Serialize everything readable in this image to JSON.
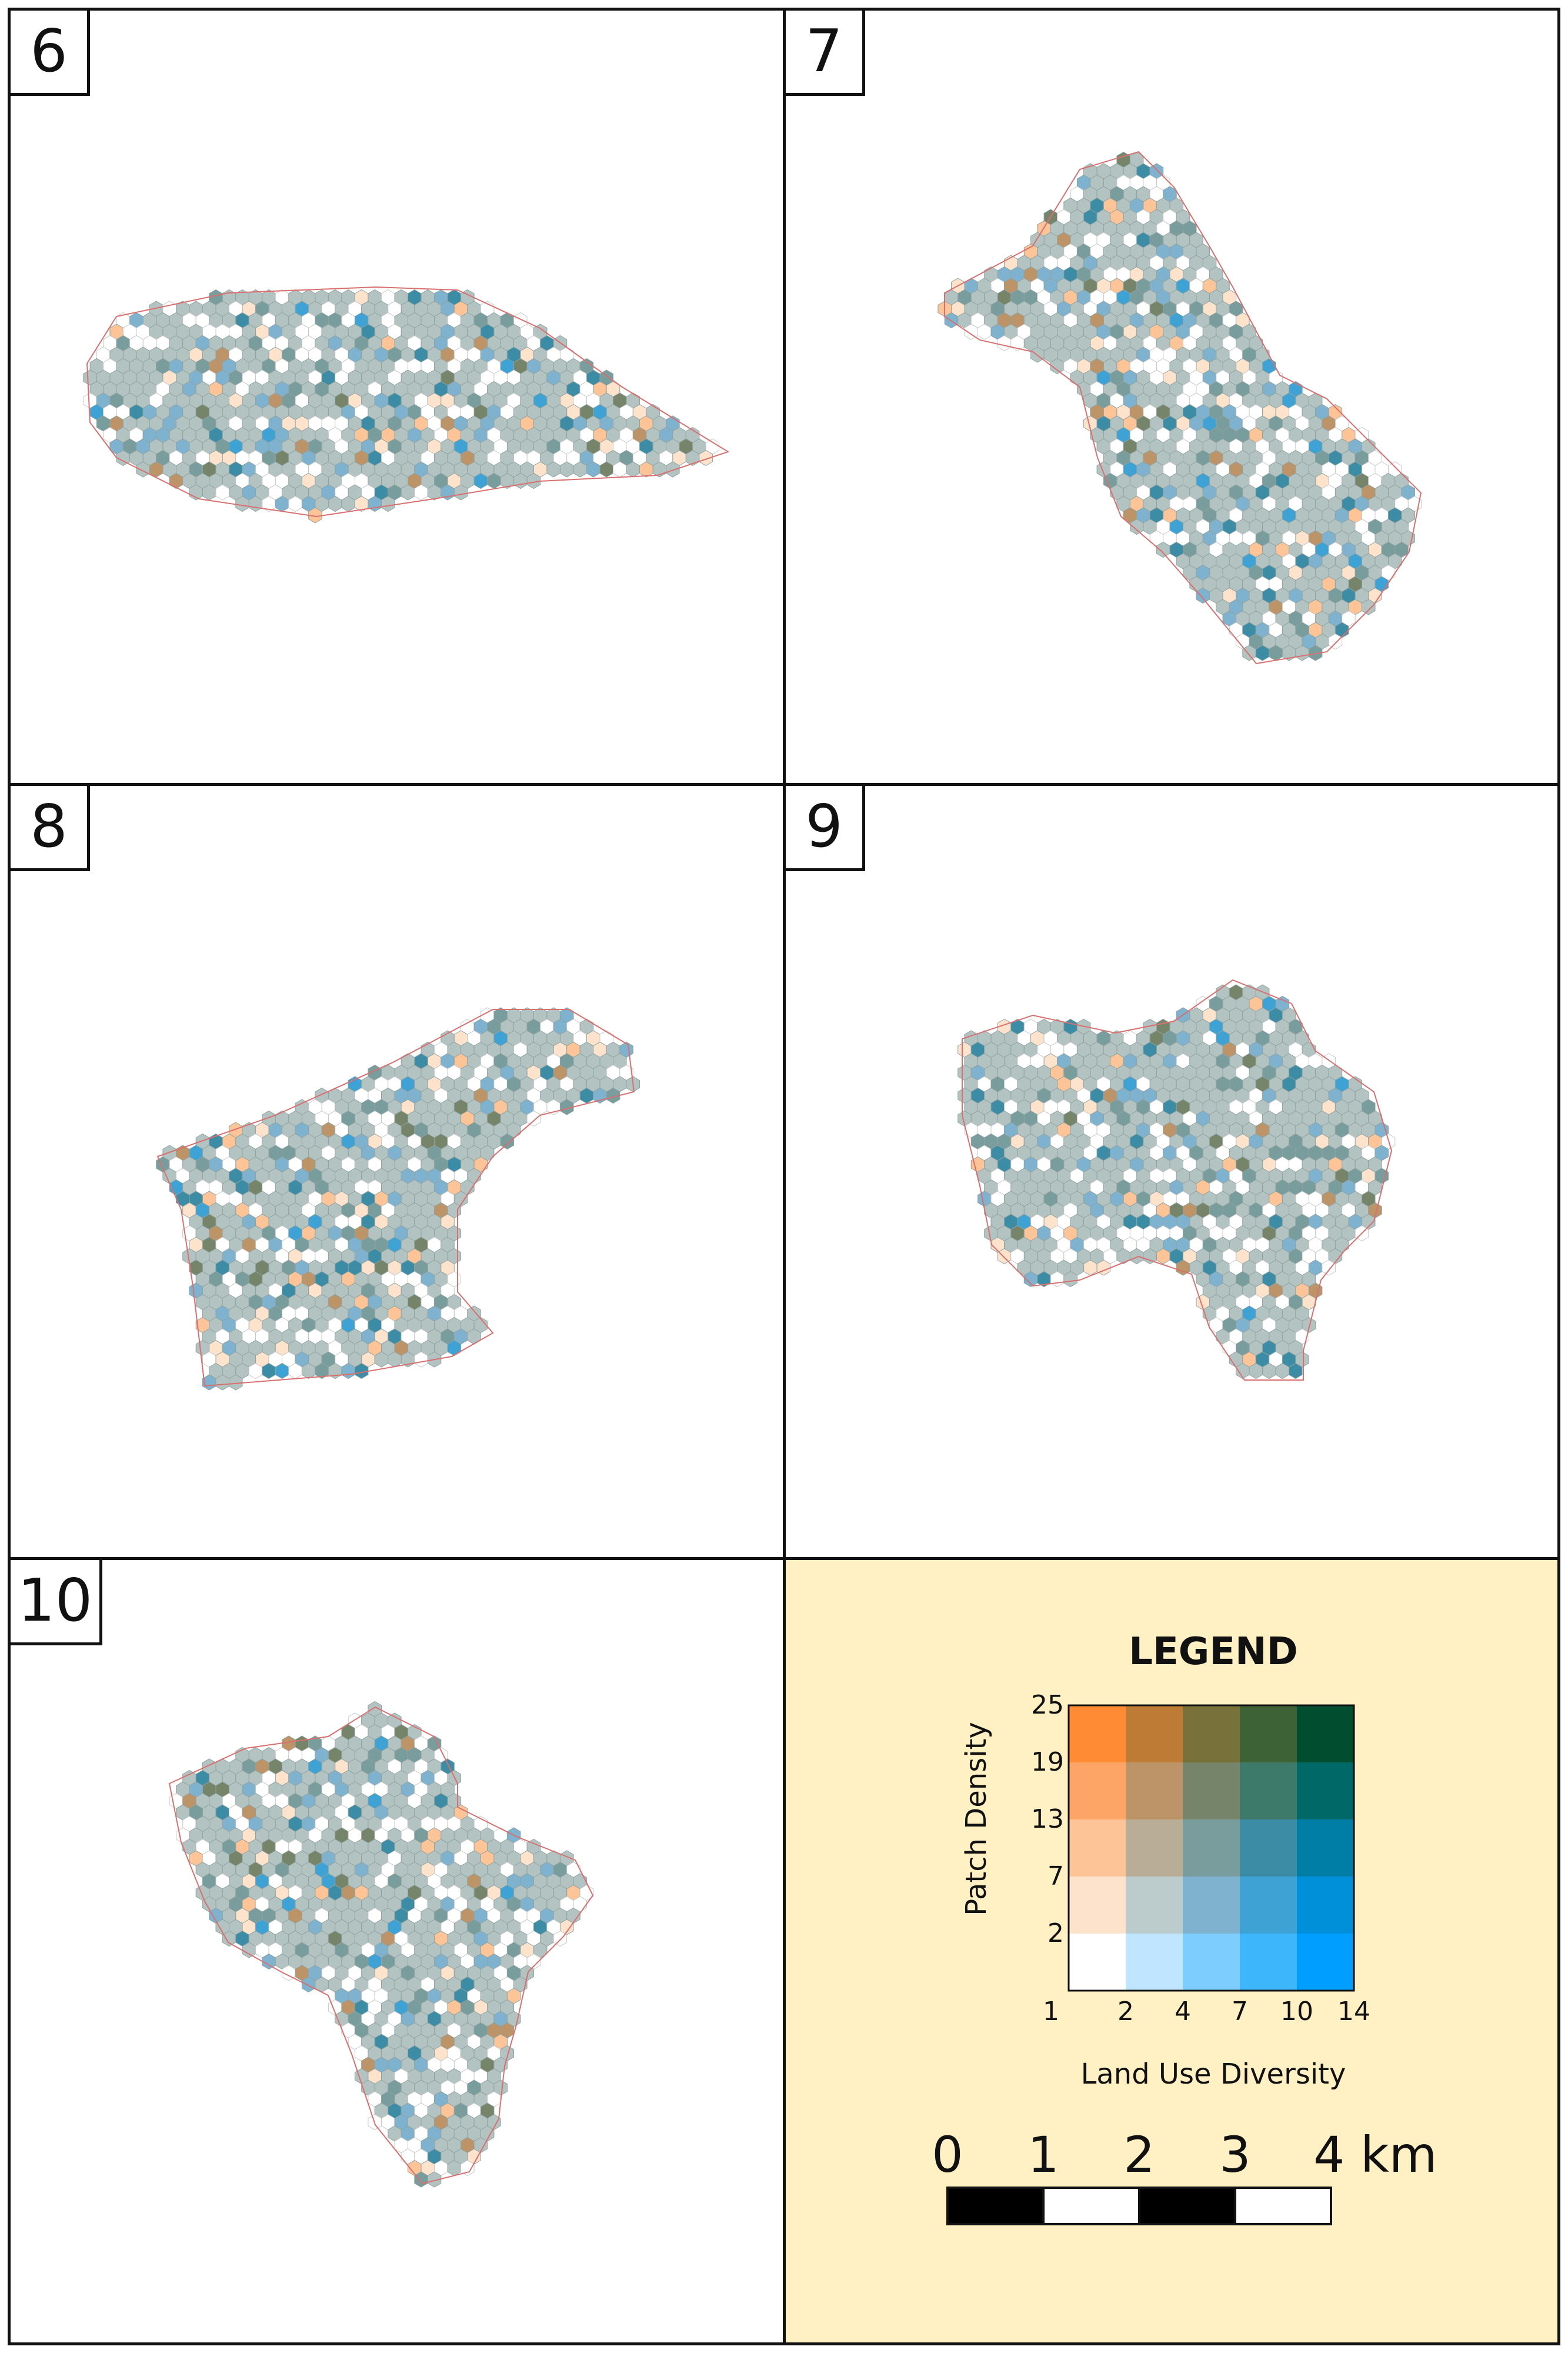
{
  "panels": [
    {
      "id": "6",
      "label": "6"
    },
    {
      "id": "7",
      "label": "7"
    },
    {
      "id": "8",
      "label": "8"
    },
    {
      "id": "9",
      "label": "9"
    },
    {
      "id": "10",
      "label": "10"
    }
  ],
  "legend": {
    "title": "LEGEND",
    "y_axis_label": "Patch Density",
    "x_axis_label": "Land Use Diversity",
    "y_ticks": [
      "25",
      "19",
      "13",
      "7",
      "2"
    ],
    "x_ticks": [
      "1",
      "2",
      "4",
      "7",
      "10",
      "14"
    ],
    "grid_colors_top_to_bottom": [
      [
        "#ff8c35",
        "#bd7b36",
        "#787139",
        "#3d6235",
        "#004d30"
      ],
      [
        "#fca566",
        "#bc9467",
        "#76856a",
        "#3e7a6a",
        "#006967"
      ],
      [
        "#fdc497",
        "#b9ad98",
        "#799d9c",
        "#3c8ca5",
        "#007ea5"
      ],
      [
        "#fde2cc",
        "#bccbcb",
        "#7eb2cf",
        "#3ea2d5",
        "#0090d9"
      ],
      [
        "#ffffff",
        "#bfe6fe",
        "#7dcefe",
        "#3db6fc",
        "#009efe"
      ]
    ]
  },
  "scale_bar": {
    "labels": [
      "0",
      "1",
      "2",
      "3",
      "4 km"
    ],
    "segment_colors": [
      "#000000",
      "#ffffff",
      "#000000",
      "#ffffff"
    ]
  },
  "colors": {
    "frame": "#111111",
    "legend_background": "#fff1c4",
    "dominant_hex_fill": "#b3c3c1",
    "district_boundary": "#d97070",
    "empty_hex_outline": "#c8c8c8"
  }
}
